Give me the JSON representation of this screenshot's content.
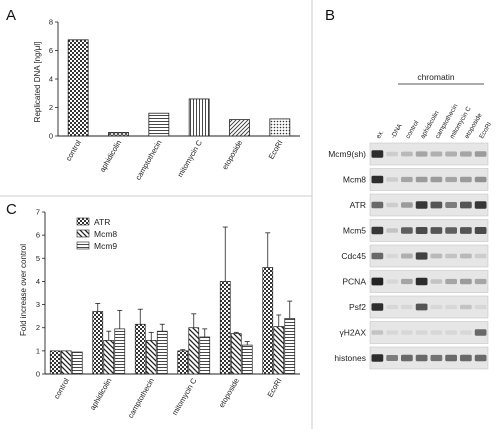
{
  "panels": {
    "a": "A",
    "b": "B",
    "c": "C"
  },
  "chart_data": [
    {
      "type": "bar",
      "panel": "A",
      "ylabel": "Replicated DNA [ng/μl]",
      "ylim": [
        0,
        8
      ],
      "yticks": [
        "0",
        "2",
        "4",
        "6",
        "8"
      ],
      "categories": [
        "control",
        "aphidicolin",
        "camptothecin",
        "mitomycin C",
        "etoposide",
        "EcoRI"
      ],
      "values": [
        6.75,
        0.25,
        1.6,
        2.6,
        1.15,
        1.2
      ],
      "patterns": [
        "checker",
        "diag-cross",
        "hlines",
        "vlines",
        "diag-left",
        "dots"
      ]
    },
    {
      "type": "bar",
      "panel": "C",
      "ylabel": "Fold increase over control",
      "ylim": [
        0,
        7
      ],
      "yticks": [
        "0",
        "1",
        "2",
        "3",
        "4",
        "5",
        "6",
        "7"
      ],
      "categories": [
        "control",
        "aphidicolin",
        "camptothecin",
        "mitomycin C",
        "etoposide",
        "EcoRI"
      ],
      "series": [
        {
          "name": "ATR",
          "pattern": "checker",
          "values": [
            1.0,
            2.7,
            2.15,
            1.0,
            4.0,
            4.6
          ],
          "errors": [
            0,
            0.35,
            0.65,
            0.05,
            2.35,
            1.5
          ]
        },
        {
          "name": "Mcm8",
          "pattern": "diag",
          "values": [
            1.0,
            1.45,
            1.45,
            2.0,
            1.75,
            2.05
          ],
          "errors": [
            0,
            0.4,
            0.35,
            0.6,
            0.05,
            0.5
          ]
        },
        {
          "name": "Mcm9",
          "pattern": "hlines",
          "values": [
            0.95,
            1.95,
            1.85,
            1.6,
            1.25,
            2.4
          ],
          "errors": [
            0,
            0.8,
            0.3,
            0.35,
            0.15,
            0.75
          ]
        }
      ]
    }
  ],
  "blot": {
    "header": "chromatin",
    "lanes": [
      "ex.",
      "-DNA",
      "control",
      "aphidicolin",
      "camptothecin",
      "mitomycin C",
      "etoposide",
      "EcoRI"
    ],
    "rows": [
      {
        "label": "Mcm9(sh)",
        "bands": [
          0.9,
          0.1,
          0.2,
          0.3,
          0.25,
          0.25,
          0.3,
          0.35
        ]
      },
      {
        "label": "Mcm8",
        "bands": [
          0.9,
          0.1,
          0.3,
          0.35,
          0.35,
          0.3,
          0.35,
          0.4
        ]
      },
      {
        "label": "ATR",
        "bands": [
          0.6,
          0.1,
          0.35,
          0.85,
          0.7,
          0.5,
          0.7,
          0.85
        ]
      },
      {
        "label": "Mcm5",
        "bands": [
          0.85,
          0.15,
          0.65,
          0.75,
          0.7,
          0.65,
          0.7,
          0.75
        ]
      },
      {
        "label": "Cdc45",
        "bands": [
          0.6,
          0.05,
          0.25,
          0.8,
          0.2,
          0.15,
          0.2,
          0.1
        ]
      },
      {
        "label": "PCNA",
        "bands": [
          0.95,
          0.05,
          0.3,
          0.9,
          0.15,
          0.3,
          0.35,
          0.3
        ]
      },
      {
        "label": "Psf2",
        "bands": [
          0.9,
          0.05,
          0.05,
          0.7,
          0.05,
          0.05,
          0.15,
          0.05
        ]
      },
      {
        "label": "γH2AX",
        "bands": [
          0.15,
          0.05,
          0.05,
          0.05,
          0.05,
          0.05,
          0.05,
          0.6
        ]
      },
      {
        "label": "histones",
        "bands": [
          0.9,
          0.5,
          0.6,
          0.6,
          0.55,
          0.6,
          0.6,
          0.6
        ]
      }
    ]
  }
}
